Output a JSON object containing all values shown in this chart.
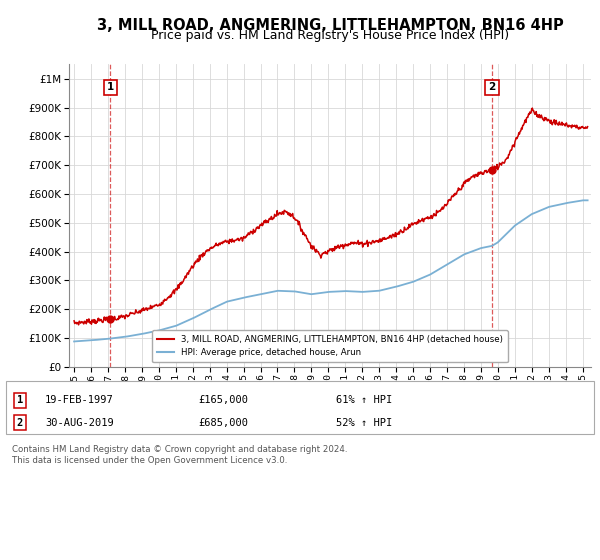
{
  "title": "3, MILL ROAD, ANGMERING, LITTLEHAMPTON, BN16 4HP",
  "subtitle": "Price paid vs. HM Land Registry's House Price Index (HPI)",
  "title_fontsize": 10.5,
  "subtitle_fontsize": 9,
  "background_color": "#ffffff",
  "plot_bg_color": "#ffffff",
  "sale1_x": 1997.13,
  "sale1_price": 165000,
  "sale2_x": 2019.66,
  "sale2_price": 685000,
  "legend_line1": "3, MILL ROAD, ANGMERING, LITTLEHAMPTON, BN16 4HP (detached house)",
  "legend_line2": "HPI: Average price, detached house, Arun",
  "red_color": "#cc0000",
  "blue_color": "#7ab0d4",
  "ylim_max": 1050000,
  "xlim_min": 1994.7,
  "xlim_max": 2025.5,
  "footer": "Contains HM Land Registry data © Crown copyright and database right 2024.\nThis data is licensed under the Open Government Licence v3.0."
}
